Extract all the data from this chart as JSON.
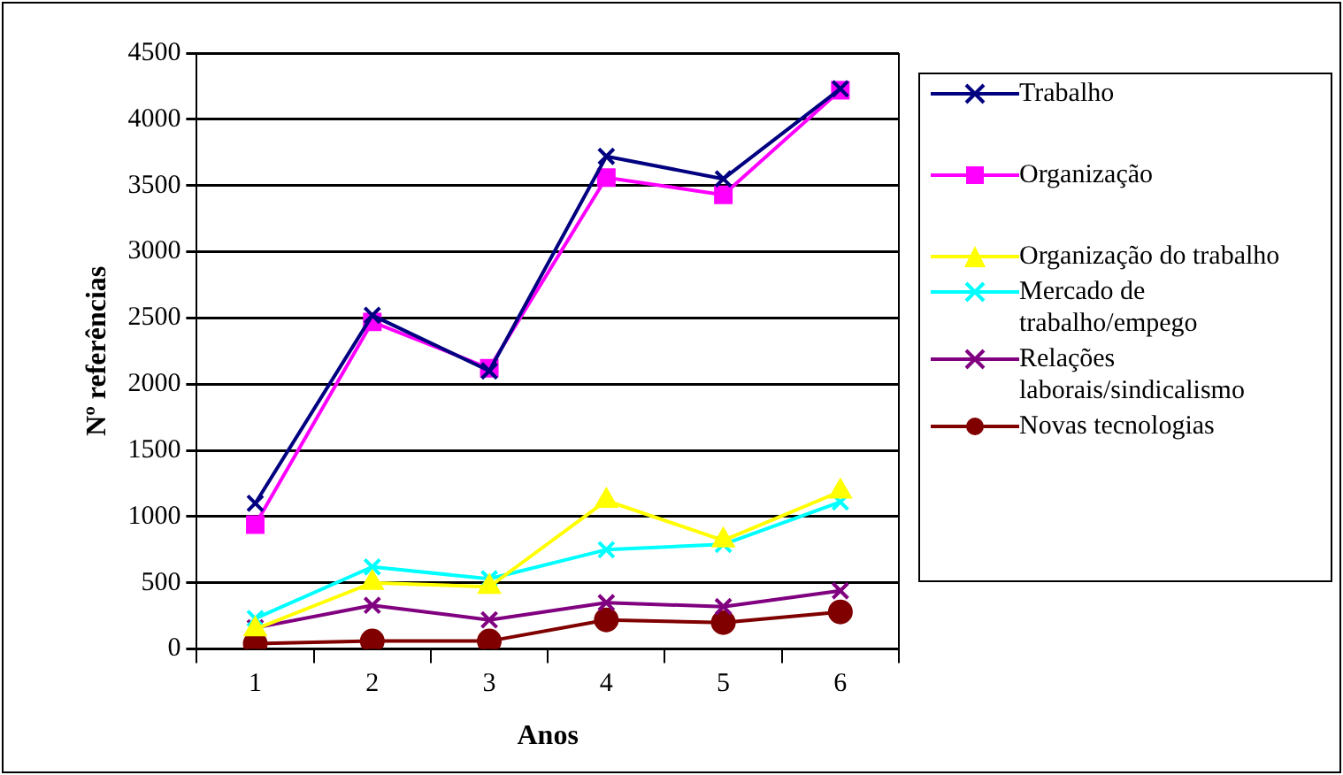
{
  "chart_data": {
    "type": "line",
    "xlabel": "Anos",
    "ylabel": "Nº referências",
    "categories": [
      "1",
      "2",
      "3",
      "4",
      "5",
      "6"
    ],
    "ylim": [
      0,
      4500
    ],
    "yticks": [
      0,
      500,
      1000,
      1500,
      2000,
      2500,
      3000,
      3500,
      4000,
      4500
    ],
    "grid": "y",
    "legend": "right",
    "line_style": "solid",
    "series": [
      {
        "name": "Trabalho",
        "color": "#000080",
        "marker": "cross",
        "values": [
          1100,
          2520,
          2100,
          3720,
          3550,
          4230
        ]
      },
      {
        "name": "Organização",
        "color": "#ff00ff",
        "marker": "square",
        "values": [
          940,
          2470,
          2120,
          3560,
          3430,
          4220
        ]
      },
      {
        "name": "Organização do trabalho",
        "color": "#ffff00",
        "marker": "triangle",
        "values": [
          150,
          500,
          470,
          1120,
          820,
          1190
        ]
      },
      {
        "name": "Mercado de trabalho/empego",
        "color": "#00ffff",
        "marker": "cross",
        "values": [
          230,
          620,
          530,
          750,
          790,
          1110
        ]
      },
      {
        "name": "Relações laborais/sindicalismo",
        "color": "#800080",
        "marker": "cross",
        "values": [
          160,
          330,
          220,
          350,
          320,
          440
        ]
      },
      {
        "name": "Novas tecnologias",
        "color": "#800000",
        "marker": "circle",
        "values": [
          40,
          60,
          60,
          220,
          200,
          280
        ]
      }
    ]
  }
}
